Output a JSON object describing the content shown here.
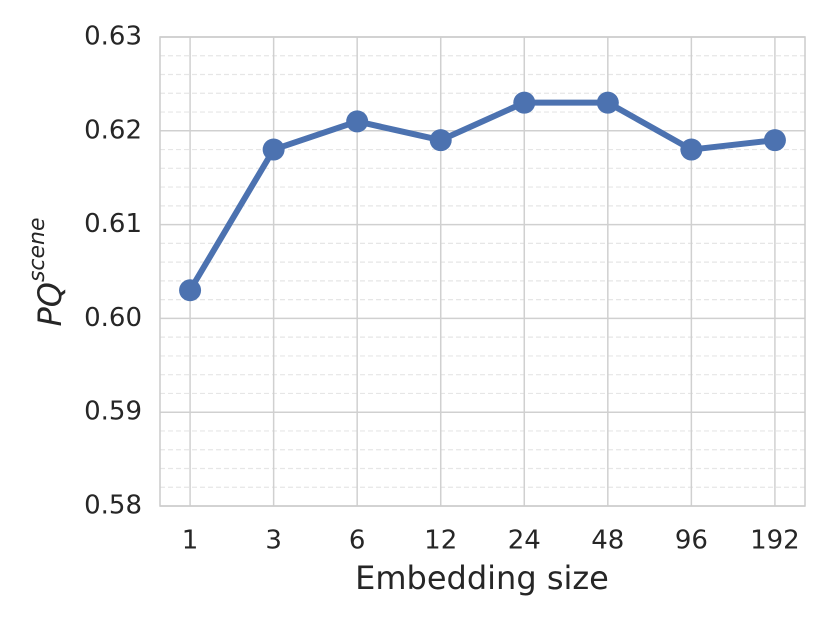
{
  "chart_data": {
    "type": "line",
    "xlabel": "Embedding size",
    "ylabel": "PQ",
    "ylabel_superscript": "scene",
    "categories": [
      "1",
      "3",
      "6",
      "12",
      "24",
      "48",
      "96",
      "192"
    ],
    "series": [
      {
        "color": "#4c72b0",
        "values": [
          0.603,
          0.618,
          0.621,
          0.619,
          0.623,
          0.623,
          0.618,
          0.619
        ]
      }
    ],
    "ylim": [
      0.58,
      0.63
    ],
    "yticks": [
      0.58,
      0.59,
      {
        "value": 0.6,
        "label": "0.60"
      },
      0.61,
      0.62,
      0.63
    ],
    "yticks_minor": [
      0.582,
      0.584,
      0.586,
      0.588,
      0.592,
      0.594,
      0.596,
      0.598,
      0.602,
      0.604,
      0.606,
      0.608,
      0.612,
      0.614,
      0.616,
      0.618,
      0.622,
      0.624,
      0.626,
      0.628
    ],
    "grid": true
  }
}
